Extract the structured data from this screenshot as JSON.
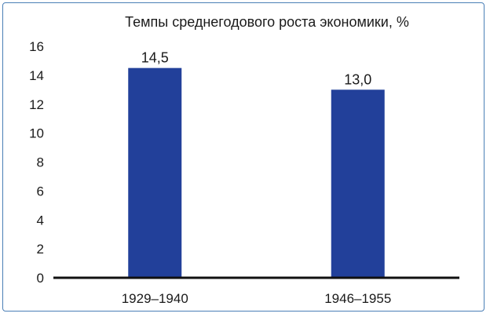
{
  "chart_data": {
    "type": "bar",
    "title": "Темпы среднегодового роста экономики, %",
    "categories": [
      "1929–1940",
      "1946–1955"
    ],
    "values": [
      14.5,
      13.0
    ],
    "data_labels": [
      "14,5",
      "13,0"
    ],
    "y_ticks": [
      "0",
      "2",
      "4",
      "6",
      "8",
      "10",
      "12",
      "14",
      "16"
    ],
    "ylim": [
      0,
      16
    ],
    "xlabel": "",
    "ylabel": "",
    "grid": false,
    "bar_color": "#22409a",
    "frame_color": "#4a7fb6"
  }
}
